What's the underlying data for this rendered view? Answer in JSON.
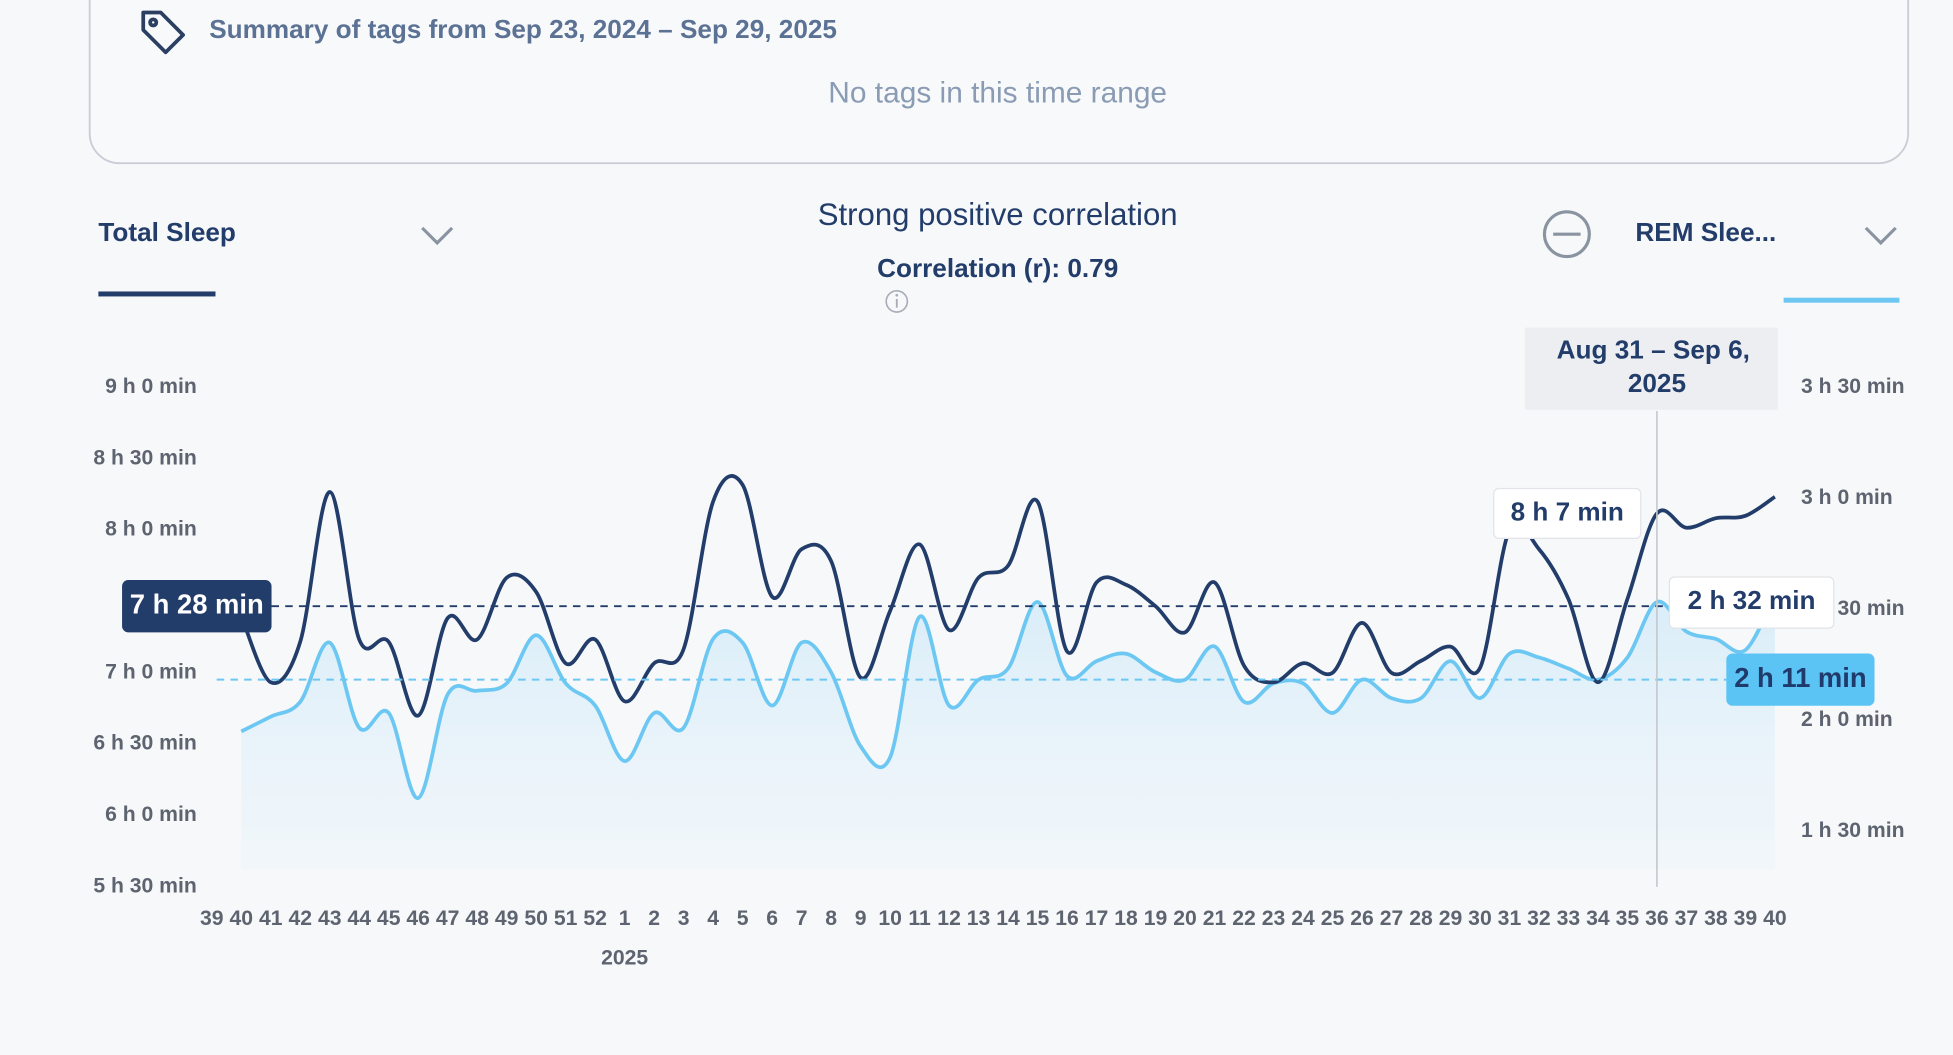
{
  "tags_summary": {
    "title": "Summary of tags from Sep 23, 2024 – Sep 29, 2025",
    "empty_message": "No tags in this time range"
  },
  "correlation": {
    "heading": "Strong positive correlation",
    "value_text": "Correlation (r): 0.79"
  },
  "chart_data": {
    "type": "line",
    "categories": [
      "39",
      "40",
      "41",
      "42",
      "43",
      "44",
      "45",
      "46",
      "47",
      "48",
      "49",
      "50",
      "51",
      "52",
      "1",
      "2",
      "3",
      "4",
      "5",
      "6",
      "7",
      "8",
      "9",
      "10",
      "11",
      "12",
      "13",
      "14",
      "15",
      "16",
      "17",
      "18",
      "19",
      "20",
      "21",
      "22",
      "23",
      "24",
      "25",
      "26",
      "27",
      "28",
      "29",
      "30",
      "31",
      "32",
      "33",
      "34",
      "35",
      "36",
      "37",
      "38",
      "39",
      "40"
    ],
    "year_label": "2025",
    "series": [
      {
        "name": "Total Sleep",
        "color": "#233d6b",
        "axis": "y",
        "values": [
          null,
          444,
          416,
          433,
          496,
          434,
          433,
          402,
          443,
          434,
          460,
          454,
          424,
          434,
          408,
          424,
          430,
          492,
          499,
          452,
          472,
          467,
          418,
          446,
          474,
          438,
          460,
          465,
          492,
          429,
          458,
          457,
          448,
          437,
          458,
          423,
          416,
          424,
          420,
          441,
          420,
          425,
          431,
          422,
          480,
          472,
          451,
          416,
          451,
          487,
          481,
          485,
          486,
          494
        ]
      },
      {
        "name": "REM Slee...",
        "color": "#6cc8f2",
        "axis": "y2",
        "values": [
          null,
          117,
          121,
          125,
          141,
          118,
          122,
          99,
          127,
          128,
          130,
          143,
          130,
          124,
          109,
          122,
          118,
          142,
          141,
          124,
          141,
          133,
          113,
          110,
          148,
          124,
          131,
          134,
          152,
          132,
          136,
          138,
          133,
          131,
          140,
          125,
          130,
          130,
          122,
          131,
          126,
          126,
          136,
          126,
          138,
          137,
          134,
          131,
          137,
          152,
          144,
          142,
          139,
          154
        ]
      }
    ],
    "ylim": [
      330,
      540
    ],
    "yticks": [
      {
        "value": 330,
        "label": "5 h 30 min"
      },
      {
        "value": 360,
        "label": "6 h 0 min"
      },
      {
        "value": 390,
        "label": "6 h 30 min"
      },
      {
        "value": 420,
        "label": "7 h 0 min"
      },
      {
        "value": 480,
        "label": "8 h 0 min"
      },
      {
        "value": 510,
        "label": "8 h 30 min"
      },
      {
        "value": 540,
        "label": "9 h 0 min"
      }
    ],
    "y2lim": [
      75,
      210
    ],
    "y2ticks": [
      {
        "value": 90,
        "label": "1 h 30 min"
      },
      {
        "value": 120,
        "label": "2 h 0 min"
      },
      {
        "value": 150,
        "label": "2 h 30 min"
      },
      {
        "value": 180,
        "label": "3 h 0 min"
      },
      {
        "value": 210,
        "label": "3 h 30 min"
      }
    ],
    "reference_lines": [
      {
        "value": 448,
        "label": "7 h 28 min",
        "axis": "y"
      },
      {
        "value": 131,
        "label": "2 h 11 min",
        "axis": "y2"
      }
    ],
    "tooltip": {
      "label": "Aug 31 – Sep 6, 2025",
      "values": [
        487,
        152
      ],
      "value_labels": [
        "8 h 7 min",
        "2 h 32 min"
      ]
    }
  }
}
